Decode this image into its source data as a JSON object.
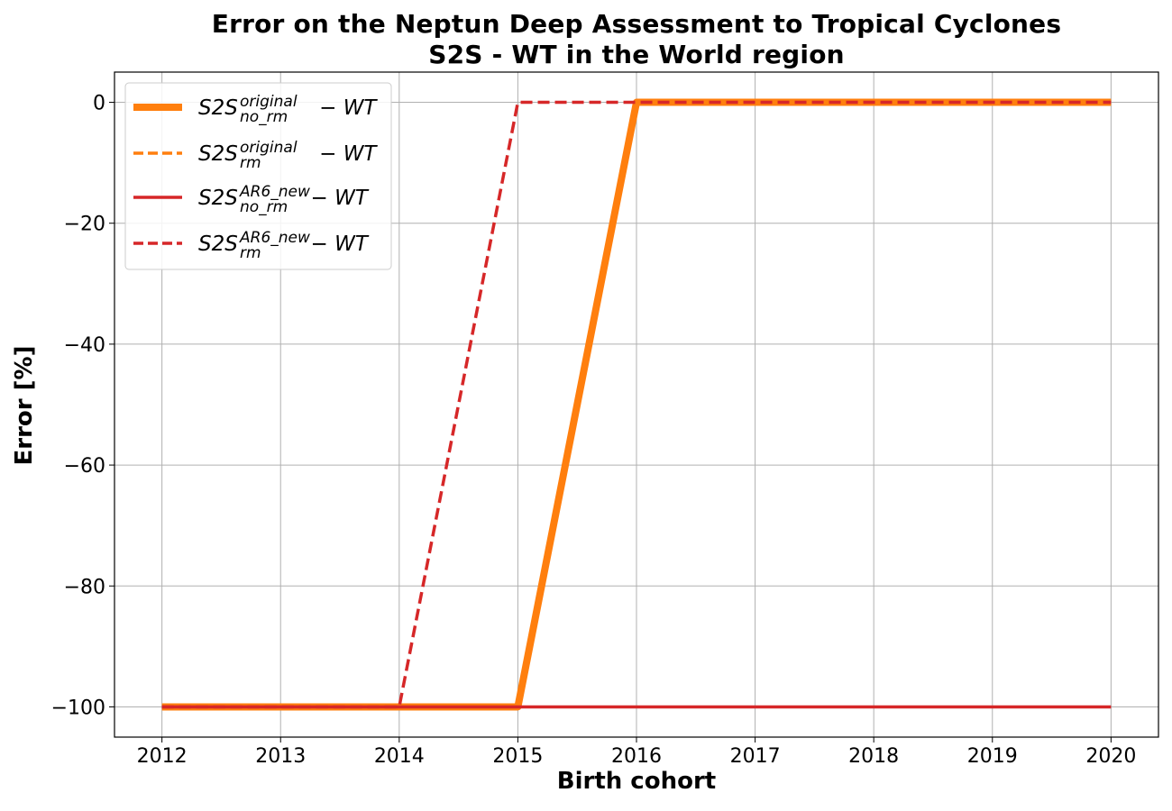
{
  "chart_data": {
    "type": "line",
    "title": [
      "Error on the Neptun Deep Assessment to Tropical Cyclones",
      "S2S - WT in the World region"
    ],
    "xlabel": "Birth cohort",
    "ylabel": "Error [%]",
    "xlim": [
      2011.6,
      2020.4
    ],
    "ylim": [
      -105,
      5
    ],
    "xticks": [
      "2012",
      "2013",
      "2014",
      "2015",
      "2016",
      "2017",
      "2018",
      "2019",
      "2020"
    ],
    "yticks": [
      {
        "value": 0,
        "label": "0"
      },
      {
        "value": -20,
        "label": "−20"
      },
      {
        "value": -40,
        "label": "−40"
      },
      {
        "value": -60,
        "label": "−60"
      },
      {
        "value": -80,
        "label": "−80"
      },
      {
        "value": -100,
        "label": "−100"
      }
    ],
    "grid": true,
    "legend_position": "upper-left",
    "x": [
      2012,
      2013,
      2014,
      2015,
      2016,
      2017,
      2018,
      2019,
      2020
    ],
    "series": [
      {
        "legend": {
          "base": "S2S",
          "sup": "original",
          "sub": "no_rm",
          "suffix": " − WT"
        },
        "color": "#ff7f0e",
        "style": "solid",
        "weight": "thick",
        "values": [
          -100,
          -100,
          -100,
          -100,
          0,
          0,
          0,
          0,
          0
        ]
      },
      {
        "legend": {
          "base": "S2S",
          "sup": "original",
          "sub": "rm",
          "suffix": " − WT"
        },
        "color": "#ff7f0e",
        "style": "dashed",
        "weight": "normal",
        "values": [
          -100,
          -100,
          -100,
          -100,
          0,
          0,
          0,
          0,
          0
        ]
      },
      {
        "legend": {
          "base": "S2S",
          "sup": "AR6_new",
          "sub": "no_rm",
          "suffix": " − WT"
        },
        "color": "#d62728",
        "style": "solid",
        "weight": "normal",
        "values": [
          -100,
          -100,
          -100,
          -100,
          -100,
          -100,
          -100,
          -100,
          -100
        ]
      },
      {
        "legend": {
          "base": "S2S",
          "sup": "AR6_new",
          "sub": "rm",
          "suffix": " − WT"
        },
        "color": "#d62728",
        "style": "dashed",
        "weight": "normal",
        "values": [
          -100,
          -100,
          -100,
          0,
          0,
          0,
          0,
          0,
          0
        ]
      }
    ]
  }
}
